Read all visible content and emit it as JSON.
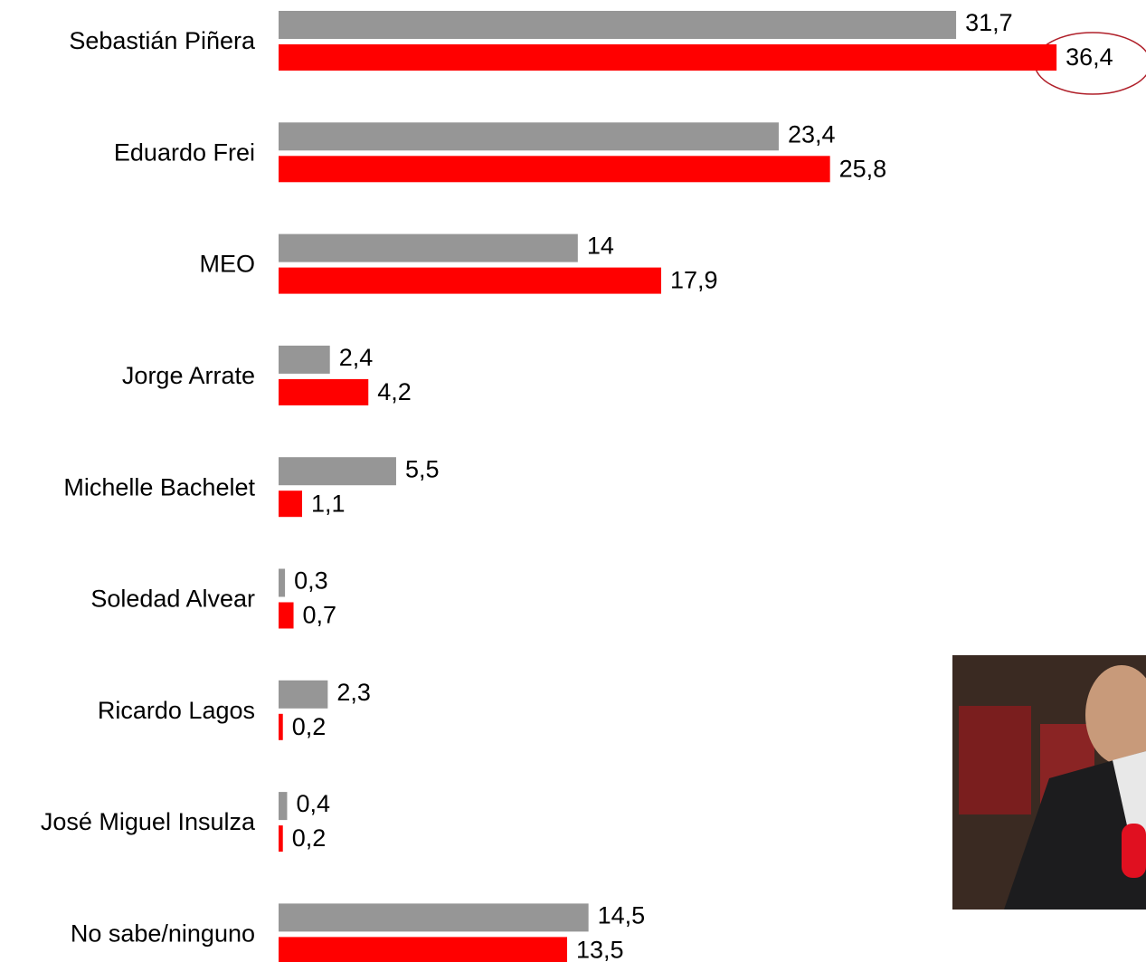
{
  "chart_data": {
    "type": "hbar",
    "categories": [
      "Sebastián Piñera",
      "Eduardo Frei",
      "MEO",
      "Jorge Arrate",
      "Michelle Bachelet",
      "Soledad Alvear",
      "Ricardo Lagos",
      "José Miguel Insulza",
      "No sabe/ninguno"
    ],
    "series": [
      {
        "color": "#969696",
        "values": [
          31.7,
          23.4,
          14,
          2.4,
          5.5,
          0.3,
          2.3,
          0.4,
          14.5
        ],
        "value_labels": [
          "31,7",
          "23,4",
          "14",
          "2,4",
          "5,5",
          "0,3",
          "2,3",
          "0,4",
          "14,5"
        ]
      },
      {
        "color": "#ff0000",
        "values": [
          36.4,
          25.8,
          17.9,
          4.2,
          1.1,
          0.7,
          0.2,
          0.2,
          13.5
        ],
        "value_labels": [
          "36,4",
          "25,8",
          "17,9",
          "4,2",
          "1,1",
          "0,7",
          "0,2",
          "0,2",
          "13,5"
        ]
      }
    ]
  }
}
